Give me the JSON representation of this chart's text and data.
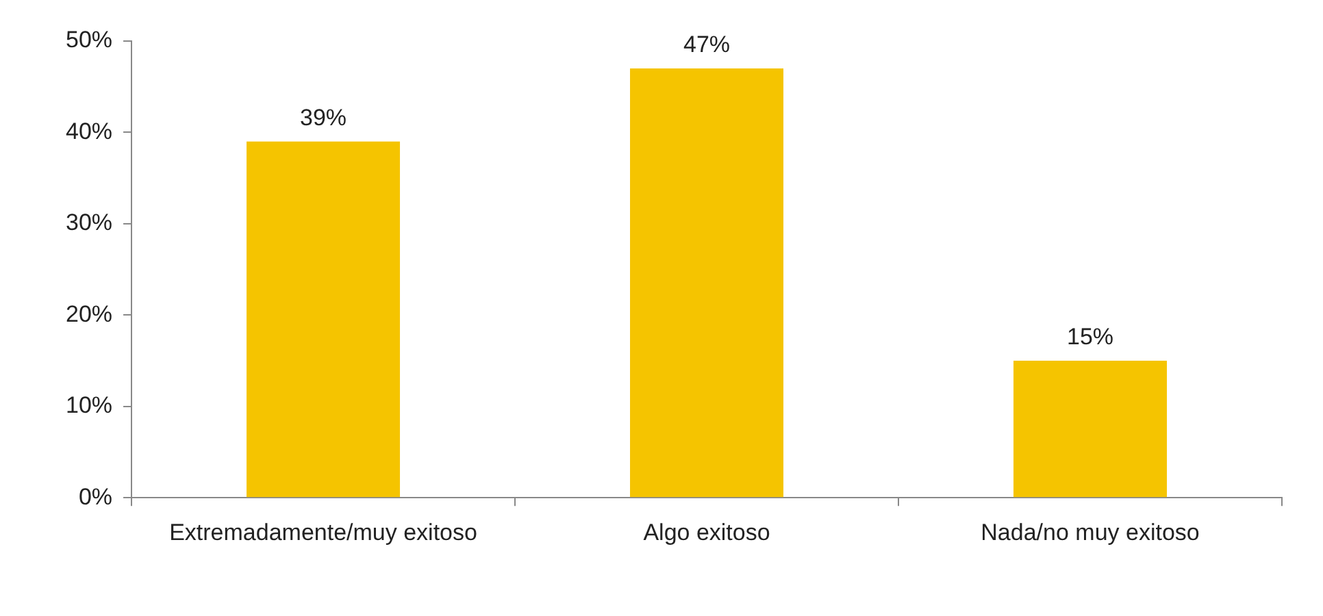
{
  "chart_data": {
    "type": "bar",
    "categories": [
      "Extremadamente/muy exitoso",
      "Algo exitoso",
      "Nada/no muy exitoso"
    ],
    "values": [
      39,
      47,
      15
    ],
    "color": "#f5c400",
    "ylim": [
      0,
      50
    ],
    "yticks": [
      {
        "value": 0,
        "label": "0%"
      },
      {
        "value": 10,
        "label": "10%"
      },
      {
        "value": 20,
        "label": "20%"
      },
      {
        "value": 30,
        "label": "30%"
      },
      {
        "value": 40,
        "label": "40%"
      },
      {
        "value": 50,
        "label": "50%"
      }
    ],
    "value_labels": [
      "39%",
      "47%",
      "15%"
    ],
    "grid": false,
    "legend": false
  }
}
